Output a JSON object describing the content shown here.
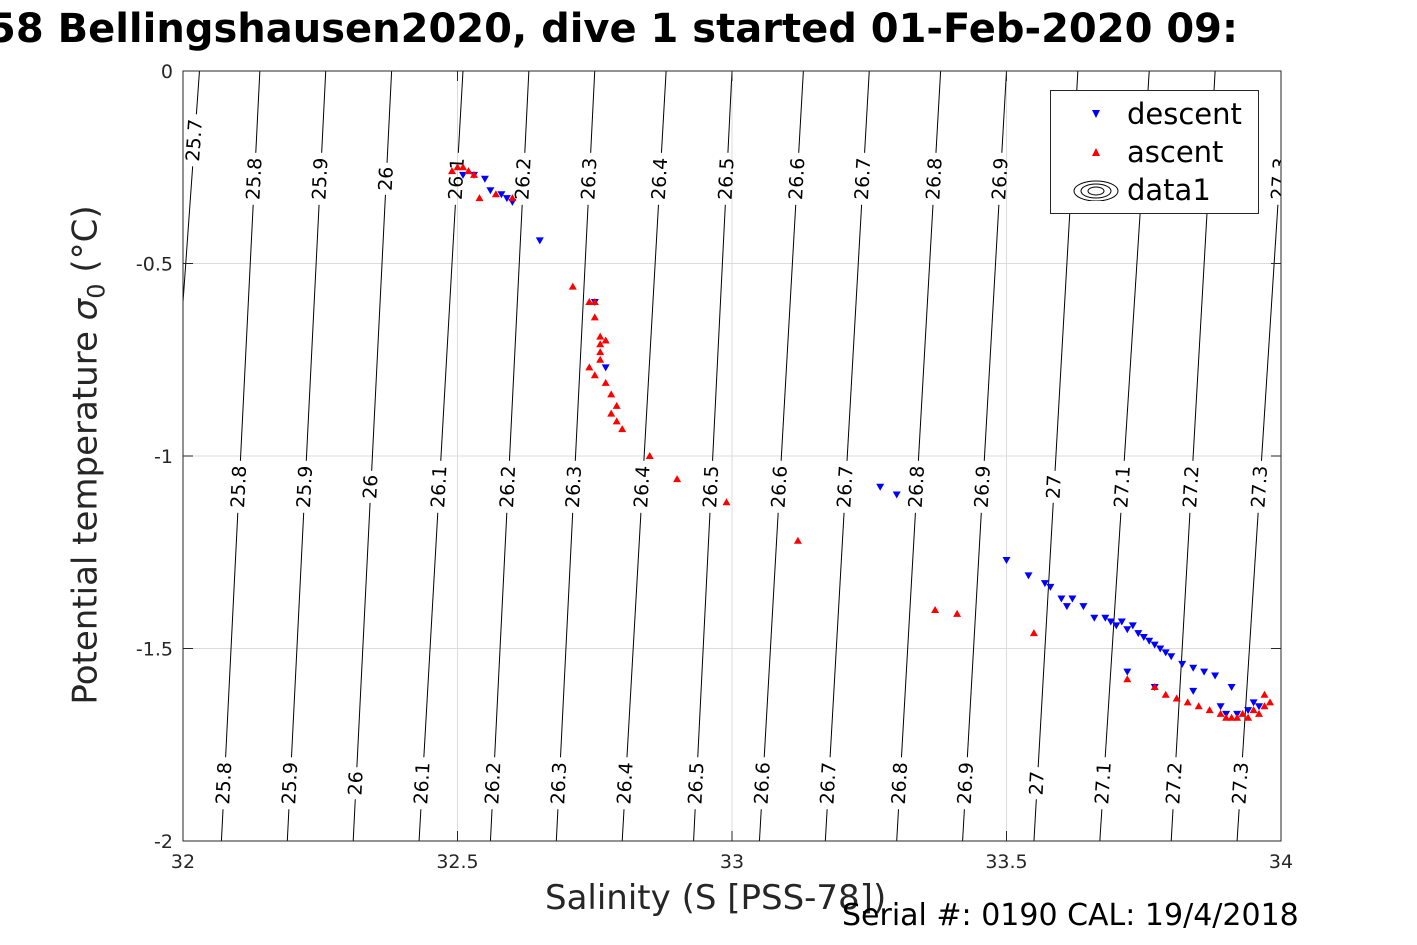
{
  "title": "58 Bellingshausen2020, dive 1 started 01-Feb-2020 09:",
  "footer": "Serial #: 0190  CAL: 19/4/2018",
  "chart_data": {
    "type": "scatter",
    "xlabel": "Salinity (S [PSS-78])",
    "ylabel_main": "Potential temperature ",
    "ylabel_sym": "σ",
    "ylabel_sub": "0",
    "ylabel_unit": " (°C)",
    "xlim": [
      32,
      34
    ],
    "ylim": [
      -2,
      0
    ],
    "xticks": [
      32,
      32.5,
      33,
      33.5,
      34
    ],
    "xtick_labels": [
      "32",
      "32.5",
      "33",
      "33.5",
      "34"
    ],
    "yticks": [
      0,
      -0.5,
      -1,
      -1.5,
      -2
    ],
    "ytick_labels": [
      "0",
      "-0.5",
      "-1",
      "-1.5",
      "-2"
    ],
    "grid": true,
    "legend_position": "top-right",
    "legend": [
      "descent",
      "ascent",
      "data1"
    ],
    "colors": {
      "descent": "#0000ff",
      "ascent": "#ff0000",
      "contour": "#000000",
      "grid": "#dcdcdc",
      "axis": "#262626"
    },
    "contours": [
      {
        "label": "25.7",
        "x_top": 32.03,
        "x_bottom": 31.93,
        "labels_y": [
          -0.18
        ]
      },
      {
        "label": "25.8",
        "x_top": 32.14,
        "x_bottom": 32.07,
        "labels_y": [
          -0.28,
          -1.08,
          -1.85
        ]
      },
      {
        "label": "25.9",
        "x_top": 32.26,
        "x_bottom": 32.19,
        "labels_y": [
          -0.28,
          -1.08,
          -1.85
        ]
      },
      {
        "label": "26",
        "x_top": 32.38,
        "x_bottom": 32.31,
        "labels_y": [
          -0.28,
          -1.08,
          -1.85
        ]
      },
      {
        "label": "26.1",
        "x_top": 32.51,
        "x_bottom": 32.43,
        "labels_y": [
          -0.28,
          -1.08,
          -1.85
        ]
      },
      {
        "label": "26.2",
        "x_top": 32.63,
        "x_bottom": 32.56,
        "labels_y": [
          -0.28,
          -1.08,
          -1.85
        ]
      },
      {
        "label": "26.3",
        "x_top": 32.75,
        "x_bottom": 32.68,
        "labels_y": [
          -0.28,
          -1.08,
          -1.85
        ]
      },
      {
        "label": "26.4",
        "x_top": 32.88,
        "x_bottom": 32.8,
        "labels_y": [
          -0.28,
          -1.08,
          -1.85
        ]
      },
      {
        "label": "26.5",
        "x_top": 33.0,
        "x_bottom": 32.93,
        "labels_y": [
          -0.28,
          -1.08,
          -1.85
        ]
      },
      {
        "label": "26.6",
        "x_top": 33.13,
        "x_bottom": 33.05,
        "labels_y": [
          -0.28,
          -1.08,
          -1.85
        ]
      },
      {
        "label": "26.7",
        "x_top": 33.25,
        "x_bottom": 33.17,
        "labels_y": [
          -0.28,
          -1.08,
          -1.85
        ]
      },
      {
        "label": "26.8",
        "x_top": 33.38,
        "x_bottom": 33.3,
        "labels_y": [
          -0.28,
          -1.08,
          -1.85
        ]
      },
      {
        "label": "26.9",
        "x_top": 33.5,
        "x_bottom": 33.42,
        "labels_y": [
          -0.28,
          -1.08,
          -1.85
        ]
      },
      {
        "label": "27",
        "x_top": 33.63,
        "x_bottom": 33.55,
        "labels_y": [
          -1.08,
          -1.85
        ]
      },
      {
        "label": "27.1",
        "x_top": 33.76,
        "x_bottom": 33.67,
        "labels_y": [
          -1.08,
          -1.85
        ]
      },
      {
        "label": "27.2",
        "x_top": 33.88,
        "x_bottom": 33.8,
        "labels_y": [
          -1.08,
          -1.85
        ]
      },
      {
        "label": "27.3",
        "x_top": 34.01,
        "x_bottom": 33.92,
        "labels_y": [
          -0.28,
          -1.08,
          -1.85
        ]
      }
    ],
    "series": [
      {
        "name": "descent",
        "marker": "triangle-down",
        "points": [
          [
            32.51,
            -0.27
          ],
          [
            32.53,
            -0.27
          ],
          [
            32.55,
            -0.28
          ],
          [
            32.56,
            -0.31
          ],
          [
            32.58,
            -0.32
          ],
          [
            32.59,
            -0.33
          ],
          [
            32.6,
            -0.34
          ],
          [
            32.65,
            -0.44
          ],
          [
            32.75,
            -0.6
          ],
          [
            32.77,
            -0.77
          ],
          [
            33.27,
            -1.08
          ],
          [
            33.3,
            -1.1
          ],
          [
            33.5,
            -1.27
          ],
          [
            33.54,
            -1.31
          ],
          [
            33.57,
            -1.33
          ],
          [
            33.58,
            -1.34
          ],
          [
            33.6,
            -1.37
          ],
          [
            33.61,
            -1.39
          ],
          [
            33.62,
            -1.37
          ],
          [
            33.64,
            -1.39
          ],
          [
            33.66,
            -1.42
          ],
          [
            33.68,
            -1.42
          ],
          [
            33.69,
            -1.43
          ],
          [
            33.7,
            -1.44
          ],
          [
            33.71,
            -1.43
          ],
          [
            33.72,
            -1.45
          ],
          [
            33.73,
            -1.44
          ],
          [
            33.74,
            -1.46
          ],
          [
            33.75,
            -1.47
          ],
          [
            33.76,
            -1.48
          ],
          [
            33.77,
            -1.49
          ],
          [
            33.78,
            -1.5
          ],
          [
            33.79,
            -1.51
          ],
          [
            33.8,
            -1.52
          ],
          [
            33.82,
            -1.54
          ],
          [
            33.84,
            -1.55
          ],
          [
            33.86,
            -1.56
          ],
          [
            33.88,
            -1.57
          ],
          [
            33.72,
            -1.56
          ],
          [
            33.77,
            -1.6
          ],
          [
            33.84,
            -1.61
          ],
          [
            33.91,
            -1.6
          ],
          [
            33.89,
            -1.65
          ],
          [
            33.9,
            -1.67
          ],
          [
            33.92,
            -1.67
          ],
          [
            33.94,
            -1.66
          ],
          [
            33.95,
            -1.64
          ],
          [
            33.96,
            -1.65
          ]
        ]
      },
      {
        "name": "ascent",
        "marker": "triangle-up",
        "points": [
          [
            32.49,
            -0.26
          ],
          [
            32.5,
            -0.25
          ],
          [
            32.51,
            -0.25
          ],
          [
            32.52,
            -0.26
          ],
          [
            32.53,
            -0.27
          ],
          [
            32.54,
            -0.33
          ],
          [
            32.57,
            -0.32
          ],
          [
            32.6,
            -0.33
          ],
          [
            32.71,
            -0.56
          ],
          [
            32.74,
            -0.6
          ],
          [
            32.75,
            -0.6
          ],
          [
            32.75,
            -0.64
          ],
          [
            32.76,
            -0.69
          ],
          [
            32.76,
            -0.71
          ],
          [
            32.77,
            -0.7
          ],
          [
            32.76,
            -0.73
          ],
          [
            32.76,
            -0.75
          ],
          [
            32.74,
            -0.77
          ],
          [
            32.75,
            -0.79
          ],
          [
            32.77,
            -0.81
          ],
          [
            32.78,
            -0.84
          ],
          [
            32.79,
            -0.87
          ],
          [
            32.78,
            -0.89
          ],
          [
            32.79,
            -0.91
          ],
          [
            32.8,
            -0.93
          ],
          [
            32.85,
            -1.0
          ],
          [
            32.9,
            -1.06
          ],
          [
            32.99,
            -1.12
          ],
          [
            33.12,
            -1.22
          ],
          [
            33.37,
            -1.4
          ],
          [
            33.41,
            -1.41
          ],
          [
            33.55,
            -1.46
          ],
          [
            33.72,
            -1.58
          ],
          [
            33.77,
            -1.6
          ],
          [
            33.79,
            -1.62
          ],
          [
            33.81,
            -1.63
          ],
          [
            33.83,
            -1.64
          ],
          [
            33.85,
            -1.65
          ],
          [
            33.87,
            -1.66
          ],
          [
            33.89,
            -1.67
          ],
          [
            33.9,
            -1.68
          ],
          [
            33.91,
            -1.68
          ],
          [
            33.92,
            -1.68
          ],
          [
            33.93,
            -1.67
          ],
          [
            33.94,
            -1.68
          ],
          [
            33.95,
            -1.66
          ],
          [
            33.96,
            -1.67
          ],
          [
            33.97,
            -1.65
          ],
          [
            33.98,
            -1.64
          ],
          [
            33.97,
            -1.62
          ]
        ]
      }
    ]
  }
}
